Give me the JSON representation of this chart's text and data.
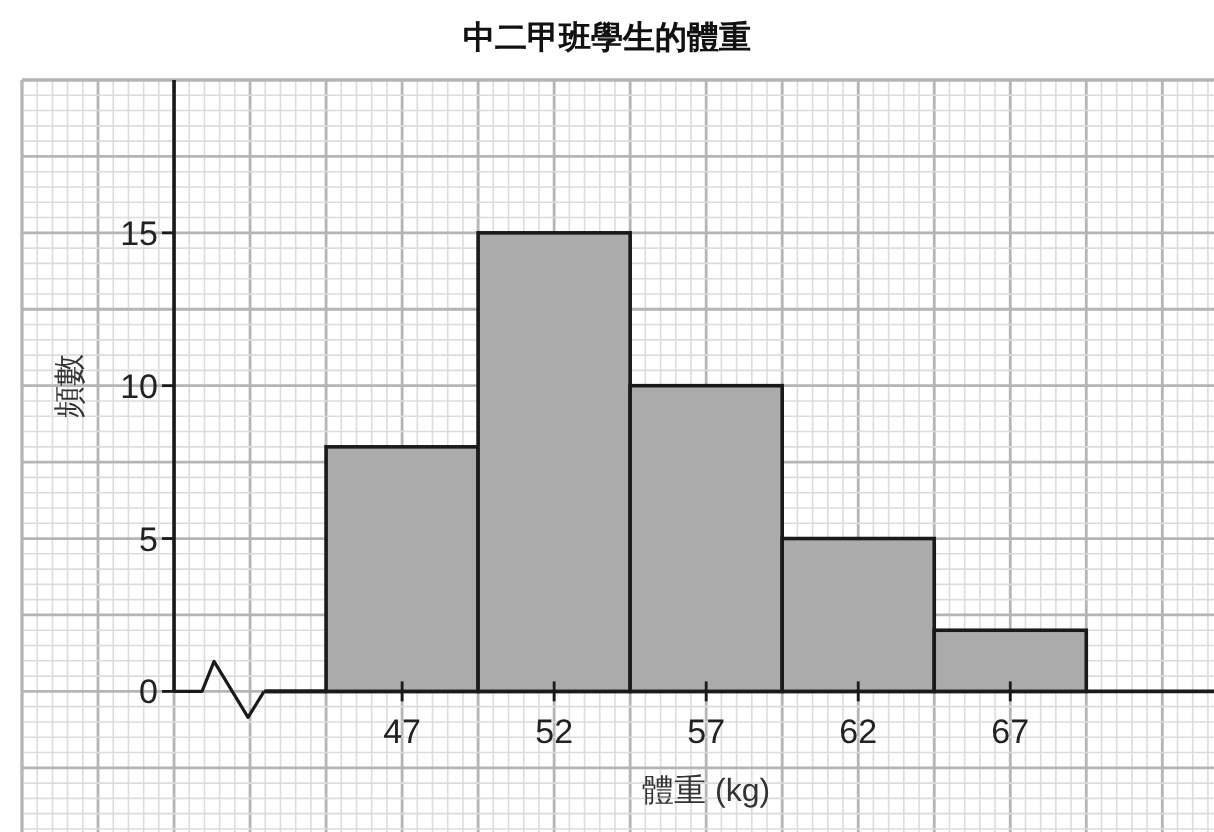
{
  "chart_data": {
    "type": "histogram",
    "title": "中二甲班學生的體重",
    "xlabel": "體重 (kg)",
    "ylabel": "頻數",
    "bins": [
      44.5,
      49.5,
      54.5,
      59.5,
      64.5,
      69.5
    ],
    "values": [
      8,
      15,
      10,
      5,
      2
    ],
    "color": "#ababab",
    "xlim": [
      34.5,
      73.7
    ],
    "ylim": [
      -4.6,
      20
    ],
    "xticks": [
      47,
      52,
      57,
      62,
      67
    ],
    "yticks": [
      0,
      5,
      10,
      15
    ],
    "grid": true
  }
}
